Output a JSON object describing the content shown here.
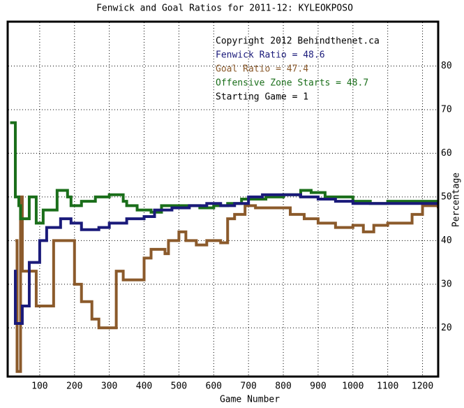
{
  "chart_data": {
    "type": "line",
    "step": "post",
    "title": "Fenwick and Goal Ratios for 2011-12: KYLEOKPOSO",
    "xlabel": "Game Number",
    "ylabel": "Percentage",
    "xlim": [
      10,
      1245
    ],
    "ylim": [
      9,
      90
    ],
    "xticks": [
      100,
      200,
      300,
      400,
      500,
      600,
      700,
      800,
      900,
      1000,
      1100,
      1200
    ],
    "yticks": [
      20,
      30,
      40,
      50,
      60,
      70,
      80
    ],
    "grid": true,
    "annotations": [
      {
        "text": "Copyright 2012 Behindthenet.ca",
        "color": "#000000"
      },
      {
        "text": "Fenwick Ratio = 48.6",
        "color": "#1a1a7a"
      },
      {
        "text": "Goal Ratio = 47.4",
        "color": "#8b5a2b"
      },
      {
        "text": "Offensive Zone Starts = 48.7",
        "color": "#1a6e1a"
      },
      {
        "text": "Starting Game = 1",
        "color": "#000000"
      }
    ],
    "series": [
      {
        "color": "#8b5a2b",
        "x": [
          30,
          35,
          45,
          50,
          80,
          90,
          130,
          140,
          180,
          200,
          220,
          250,
          270,
          310,
          320,
          340,
          390,
          400,
          420,
          450,
          460,
          470,
          500,
          520,
          550,
          580,
          620,
          640,
          660,
          690,
          720,
          800,
          820,
          860,
          900,
          950,
          1000,
          1030,
          1060,
          1100,
          1140,
          1170,
          1200,
          1245
        ],
        "values": [
          40,
          10,
          50,
          33,
          33,
          25,
          25,
          40,
          40,
          30,
          26,
          22,
          20,
          20,
          33,
          31,
          31,
          36,
          38,
          38,
          37,
          40,
          42,
          40,
          39,
          40,
          39.5,
          45,
          46,
          48,
          47.5,
          47.5,
          46,
          45,
          44,
          43,
          43.5,
          42,
          43.5,
          44,
          44,
          46,
          48,
          47.4
        ]
      },
      {
        "color": "#1a6e1a",
        "x": [
          15,
          30,
          40,
          45,
          60,
          70,
          90,
          110,
          140,
          150,
          180,
          190,
          220,
          260,
          300,
          340,
          350,
          380,
          420,
          450,
          500,
          560,
          600,
          640,
          680,
          750,
          800,
          850,
          880,
          920,
          1000,
          1050,
          1100,
          1245
        ],
        "values": [
          67,
          50,
          48,
          45,
          45,
          50,
          44,
          47,
          47,
          51.5,
          50,
          48,
          49,
          50,
          50.5,
          49,
          48,
          47,
          46.5,
          48,
          48,
          47.5,
          48,
          48.5,
          49.5,
          50,
          50.5,
          51.5,
          51,
          50,
          49,
          48.5,
          49,
          48.7
        ]
      },
      {
        "color": "#1a1a7a",
        "x": [
          26,
          30,
          50,
          70,
          100,
          120,
          160,
          190,
          220,
          270,
          300,
          350,
          400,
          430,
          480,
          530,
          580,
          620,
          660,
          700,
          740,
          800,
          850,
          900,
          950,
          1000,
          1100,
          1150,
          1245
        ],
        "values": [
          33,
          21,
          25,
          35,
          40,
          43,
          45,
          44,
          42.5,
          43,
          44,
          45,
          45.5,
          47,
          47.5,
          48,
          48.5,
          48,
          48.5,
          50,
          50.5,
          50.5,
          50,
          49.5,
          49,
          48.5,
          48.5,
          48.5,
          48.6
        ]
      }
    ]
  }
}
